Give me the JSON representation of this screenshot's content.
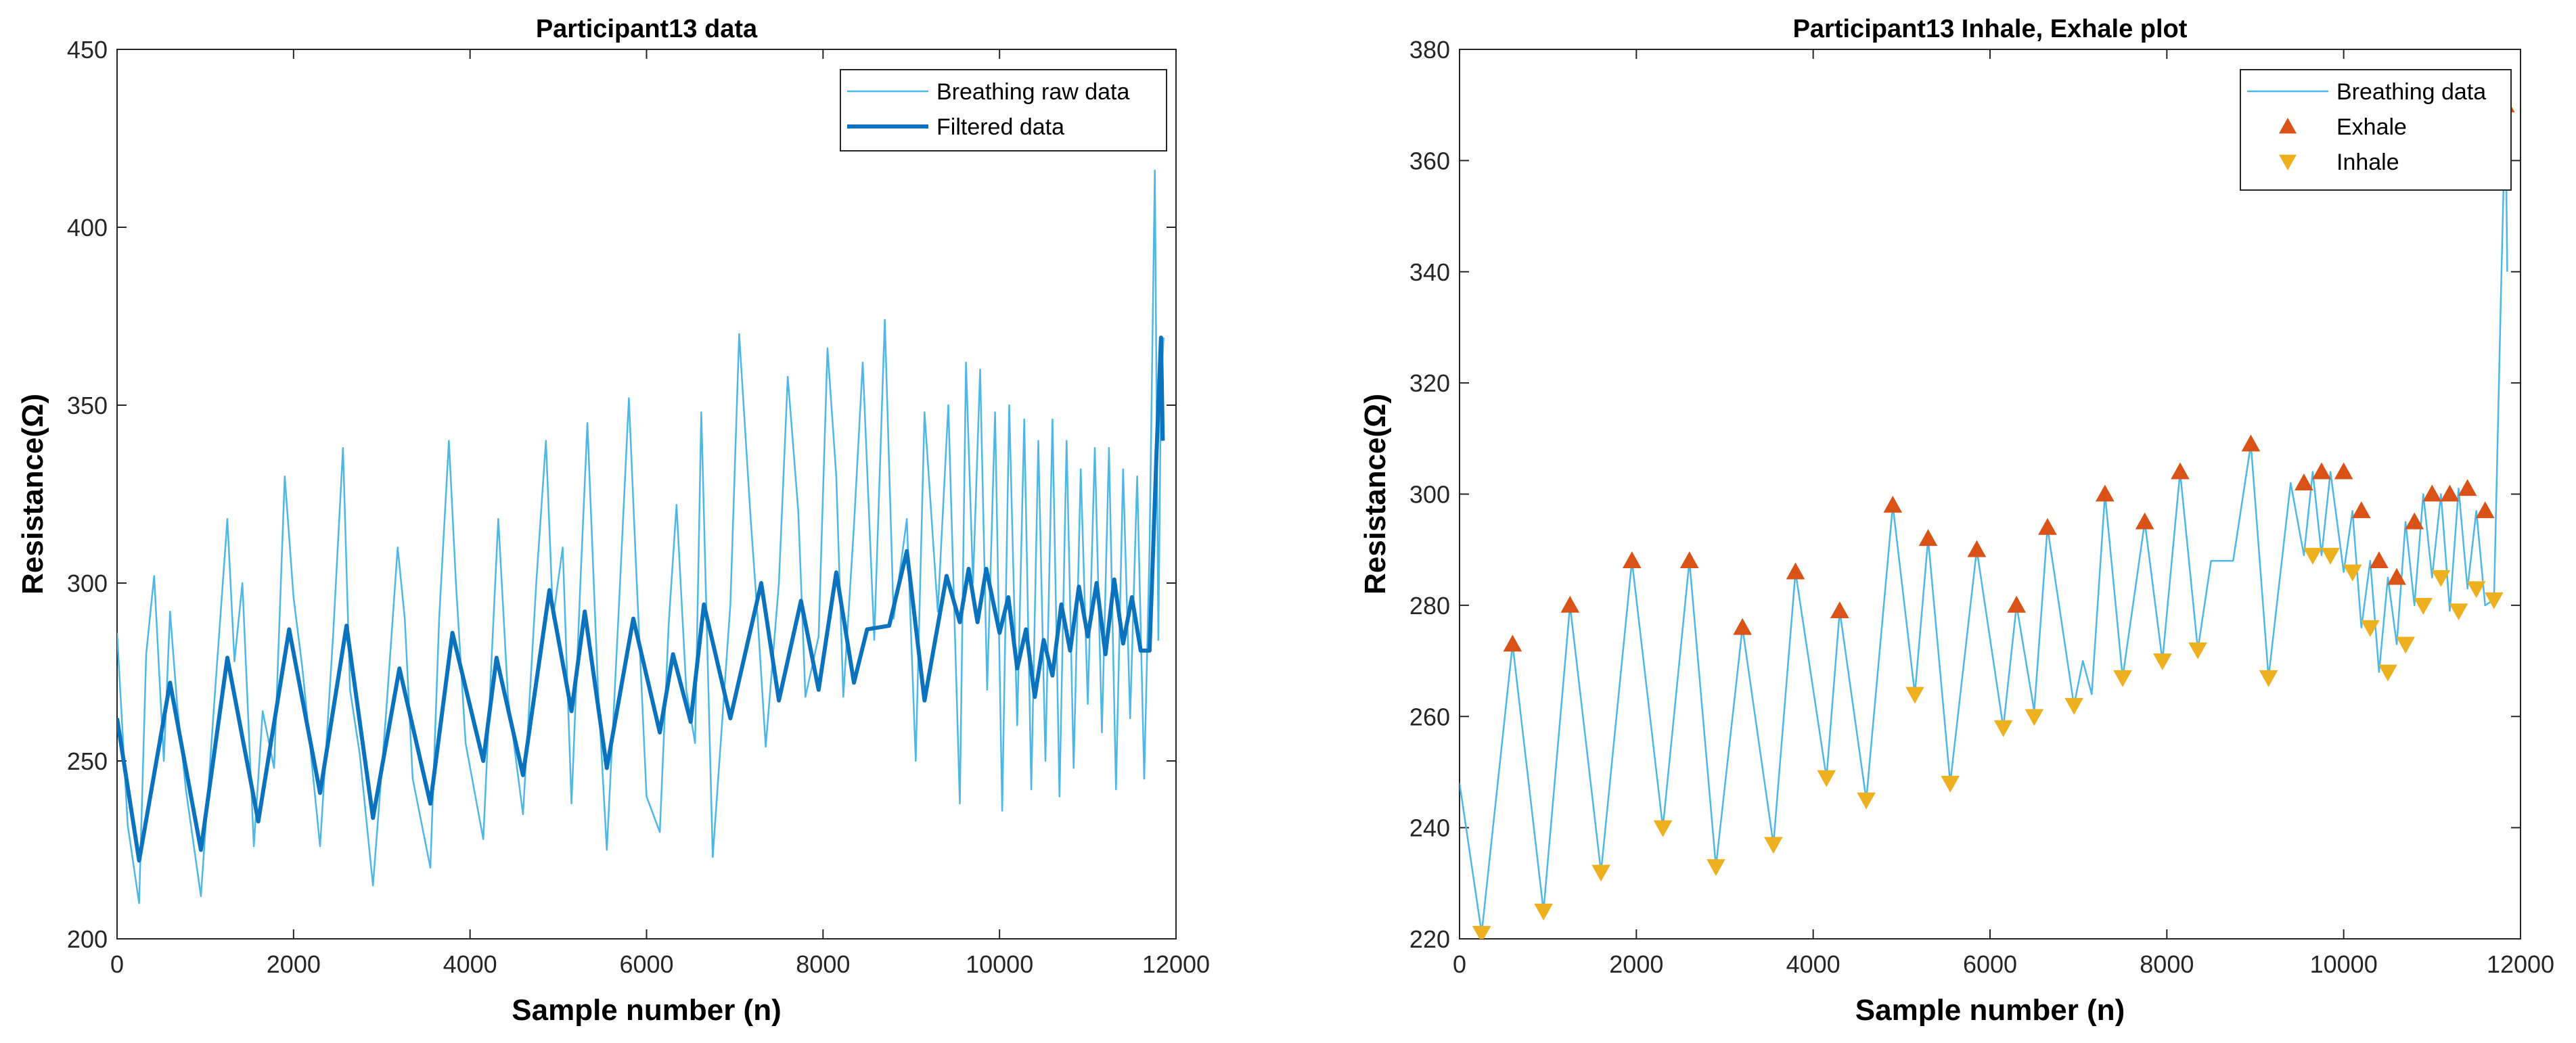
{
  "chart_data": [
    {
      "type": "line",
      "title": "Participant13 data",
      "xlabel": "Sample number (n)",
      "ylabel": "Resistance(Ω)",
      "xlim": [
        0,
        12000
      ],
      "ylim": [
        200,
        450
      ],
      "xticks": [
        0,
        2000,
        4000,
        6000,
        8000,
        10000,
        12000
      ],
      "yticks": [
        200,
        250,
        300,
        350,
        400,
        450
      ],
      "legend": {
        "position": "top-right",
        "entries": [
          "Breathing raw data",
          "Filtered data"
        ]
      },
      "series": [
        {
          "name": "Filtered data",
          "color": "#0b72bd",
          "x": [
            0,
            250,
            600,
            950,
            1250,
            1600,
            1950,
            2300,
            2600,
            2900,
            3200,
            3550,
            3800,
            4150,
            4300,
            4600,
            4900,
            5150,
            5300,
            5550,
            5850,
            6150,
            6300,
            6500,
            6650,
            6950,
            7300,
            7500,
            7750,
            7950,
            8150,
            8350,
            8500,
            8750,
            8950,
            9150,
            9400,
            9550,
            9650,
            9750,
            9850,
            10000,
            10100,
            10200,
            10300,
            10400,
            10500,
            10600,
            10700,
            10800,
            10900,
            11000,
            11100,
            11200,
            11300,
            11400,
            11500,
            11600,
            11700,
            11780,
            11830,
            11850
          ],
          "values": [
            262,
            222,
            272,
            225,
            279,
            233,
            287,
            241,
            288,
            234,
            276,
            238,
            286,
            250,
            279,
            246,
            298,
            264,
            292,
            248,
            290,
            258,
            280,
            261,
            294,
            262,
            300,
            267,
            295,
            270,
            303,
            272,
            287,
            288,
            309,
            267,
            302,
            289,
            304,
            289,
            304,
            286,
            296,
            276,
            287,
            268,
            284,
            274,
            294,
            281,
            299,
            285,
            300,
            280,
            301,
            283,
            296,
            281,
            281,
            337,
            369,
            340
          ]
        },
        {
          "name": "Breathing raw data",
          "color": "#4db8e6",
          "x": [
            0,
            120,
            250,
            330,
            420,
            530,
            600,
            680,
            780,
            950,
            1100,
            1250,
            1330,
            1420,
            1550,
            1650,
            1780,
            1900,
            2000,
            2100,
            2300,
            2450,
            2560,
            2640,
            2750,
            2900,
            3050,
            3180,
            3260,
            3350,
            3550,
            3650,
            3760,
            3840,
            3950,
            4150,
            4250,
            4320,
            4430,
            4600,
            4750,
            4860,
            4940,
            5050,
            5150,
            5250,
            5330,
            5450,
            5550,
            5680,
            5800,
            5880,
            6000,
            6150,
            6250,
            6340,
            6450,
            6550,
            6620,
            6750,
            6950,
            7050,
            7180,
            7260,
            7350,
            7500,
            7600,
            7720,
            7800,
            7950,
            8050,
            8150,
            8230,
            8350,
            8450,
            8580,
            8700,
            8800,
            8950,
            9050,
            9150,
            9300,
            9420,
            9550,
            9620,
            9700,
            9780,
            9860,
            9950,
            10030,
            10110,
            10200,
            10280,
            10360,
            10440,
            10520,
            10600,
            10680,
            10760,
            10840,
            10920,
            11000,
            11080,
            11160,
            11240,
            11320,
            11400,
            11480,
            11560,
            11640,
            11700,
            11760,
            11800,
            11830,
            11860
          ],
          "values": [
            286,
            232,
            210,
            280,
            302,
            250,
            292,
            266,
            242,
            212,
            266,
            318,
            278,
            300,
            226,
            264,
            248,
            330,
            296,
            276,
            226,
            286,
            338,
            270,
            252,
            215,
            264,
            310,
            290,
            245,
            220,
            290,
            340,
            300,
            255,
            228,
            282,
            318,
            268,
            235,
            300,
            340,
            290,
            310,
            238,
            300,
            345,
            270,
            225,
            290,
            352,
            305,
            240,
            230,
            288,
            322,
            270,
            255,
            348,
            223,
            294,
            370,
            318,
            290,
            254,
            300,
            358,
            320,
            268,
            285,
            366,
            330,
            268,
            316,
            362,
            284,
            374,
            290,
            318,
            250,
            348,
            292,
            350,
            238,
            362,
            300,
            360,
            270,
            348,
            236,
            350,
            260,
            346,
            242,
            340,
            250,
            346,
            240,
            340,
            248,
            332,
            266,
            338,
            258,
            338,
            242,
            332,
            262,
            330,
            245,
            310,
            416,
            284,
            356,
            369
          ]
        }
      ]
    },
    {
      "type": "line",
      "title": "Participant13 Inhale, Exhale plot",
      "xlabel": "Sample number (n)",
      "ylabel": "Resistance(Ω)",
      "xlim": [
        0,
        12000
      ],
      "ylim": [
        220,
        380
      ],
      "xticks": [
        0,
        2000,
        4000,
        6000,
        8000,
        10000,
        12000
      ],
      "yticks": [
        220,
        240,
        260,
        280,
        300,
        320,
        340,
        360,
        380
      ],
      "legend": {
        "position": "top-right",
        "entries": [
          "Breathing data",
          "Exhale",
          "Inhale"
        ]
      },
      "series": [
        {
          "name": "Breathing data",
          "color": "#4db8e6",
          "x": [
            0,
            250,
            600,
            950,
            1250,
            1600,
            1950,
            2300,
            2600,
            2900,
            3200,
            3550,
            3800,
            4150,
            4300,
            4600,
            4900,
            5150,
            5300,
            5550,
            5850,
            6150,
            6300,
            6500,
            6650,
            6950,
            7050,
            7150,
            7300,
            7500,
            7750,
            7950,
            8150,
            8350,
            8500,
            8750,
            8950,
            9150,
            9400,
            9550,
            9650,
            9750,
            9850,
            10000,
            10100,
            10200,
            10300,
            10400,
            10500,
            10600,
            10700,
            10800,
            10900,
            11000,
            11100,
            11200,
            11300,
            11400,
            11500,
            11600,
            11700,
            11780,
            11830,
            11850
          ],
          "values": [
            248,
            221,
            273,
            225,
            280,
            232,
            288,
            240,
            288,
            233,
            276,
            237,
            286,
            249,
            279,
            245,
            298,
            264,
            292,
            248,
            290,
            258,
            280,
            261,
            294,
            262,
            270,
            264,
            300,
            267,
            295,
            270,
            304,
            272,
            288,
            288,
            309,
            267,
            302,
            289,
            304,
            289,
            304,
            286,
            297,
            276,
            288,
            268,
            285,
            273,
            295,
            280,
            300,
            285,
            300,
            279,
            301,
            283,
            297,
            280,
            281,
            337,
            370,
            340
          ]
        },
        {
          "name": "Exhale",
          "color": "#d95319",
          "marker": "triangle-up",
          "x": [
            600,
            1250,
            1950,
            2600,
            3200,
            3800,
            4300,
            4900,
            5300,
            5850,
            6300,
            6650,
            7300,
            7750,
            8150,
            8950,
            9550,
            9750,
            10000,
            10200,
            10400,
            10600,
            10800,
            11000,
            11200,
            11400,
            11600,
            11830
          ],
          "values": [
            273,
            280,
            288,
            288,
            276,
            286,
            279,
            298,
            292,
            290,
            280,
            294,
            300,
            295,
            304,
            309,
            302,
            304,
            304,
            297,
            288,
            285,
            295,
            300,
            300,
            301,
            297,
            370
          ]
        },
        {
          "name": "Inhale",
          "color": "#edb120",
          "marker": "triangle-down",
          "x": [
            250,
            950,
            1600,
            2300,
            2900,
            3550,
            4150,
            4600,
            5150,
            5550,
            6150,
            6500,
            6950,
            7500,
            7950,
            8350,
            9150,
            9650,
            9850,
            10100,
            10300,
            10500,
            10700,
            10900,
            11100,
            11300,
            11500,
            11700
          ],
          "values": [
            221,
            225,
            232,
            240,
            233,
            237,
            249,
            245,
            264,
            248,
            258,
            260,
            262,
            267,
            270,
            272,
            267,
            289,
            289,
            286,
            276,
            268,
            273,
            280,
            285,
            279,
            283,
            281
          ]
        }
      ]
    }
  ]
}
